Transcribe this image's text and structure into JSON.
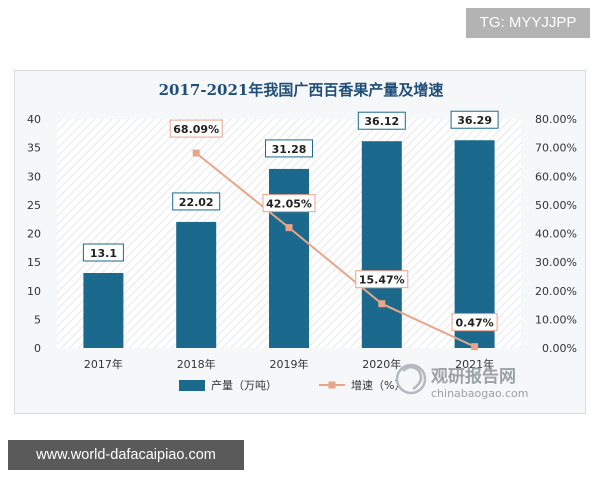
{
  "tg_badge": "TG: MYYJJPP",
  "footer_url": "www.world-dafacaipiao.com",
  "watermark": {
    "name": "观研报告网",
    "domain": "chinabaogao.com"
  },
  "chart_data": {
    "type": "bar",
    "title": "2017-2021年我国广西百香果产量及增速",
    "categories": [
      "2017年",
      "2018年",
      "2019年",
      "2020年",
      "2021年"
    ],
    "y_left": {
      "ticks": [
        "0",
        "5",
        "10",
        "15",
        "20",
        "25",
        "30",
        "35",
        "40"
      ],
      "range": [
        0,
        40
      ]
    },
    "y_right": {
      "ticks": [
        "0.00%",
        "10.00%",
        "20.00%",
        "30.00%",
        "40.00%",
        "50.00%",
        "60.00%",
        "70.00%",
        "80.00%"
      ],
      "range": [
        0,
        80
      ]
    },
    "series": [
      {
        "name": "产量（万吨）",
        "type": "bar",
        "axis": "left",
        "color": "#1b6a8e",
        "values": [
          13.1,
          22.02,
          31.28,
          36.12,
          36.29
        ],
        "labels": [
          "13.1",
          "22.02",
          "31.28",
          "36.12",
          "36.29"
        ]
      },
      {
        "name": "增速（%）",
        "type": "line",
        "axis": "right",
        "color": "#e8a58a",
        "values": [
          null,
          68.09,
          42.05,
          15.47,
          0.47
        ],
        "labels": [
          "",
          "68.09%",
          "42.05%",
          "15.47%",
          "0.47%"
        ]
      }
    ],
    "legend_position": "bottom"
  }
}
